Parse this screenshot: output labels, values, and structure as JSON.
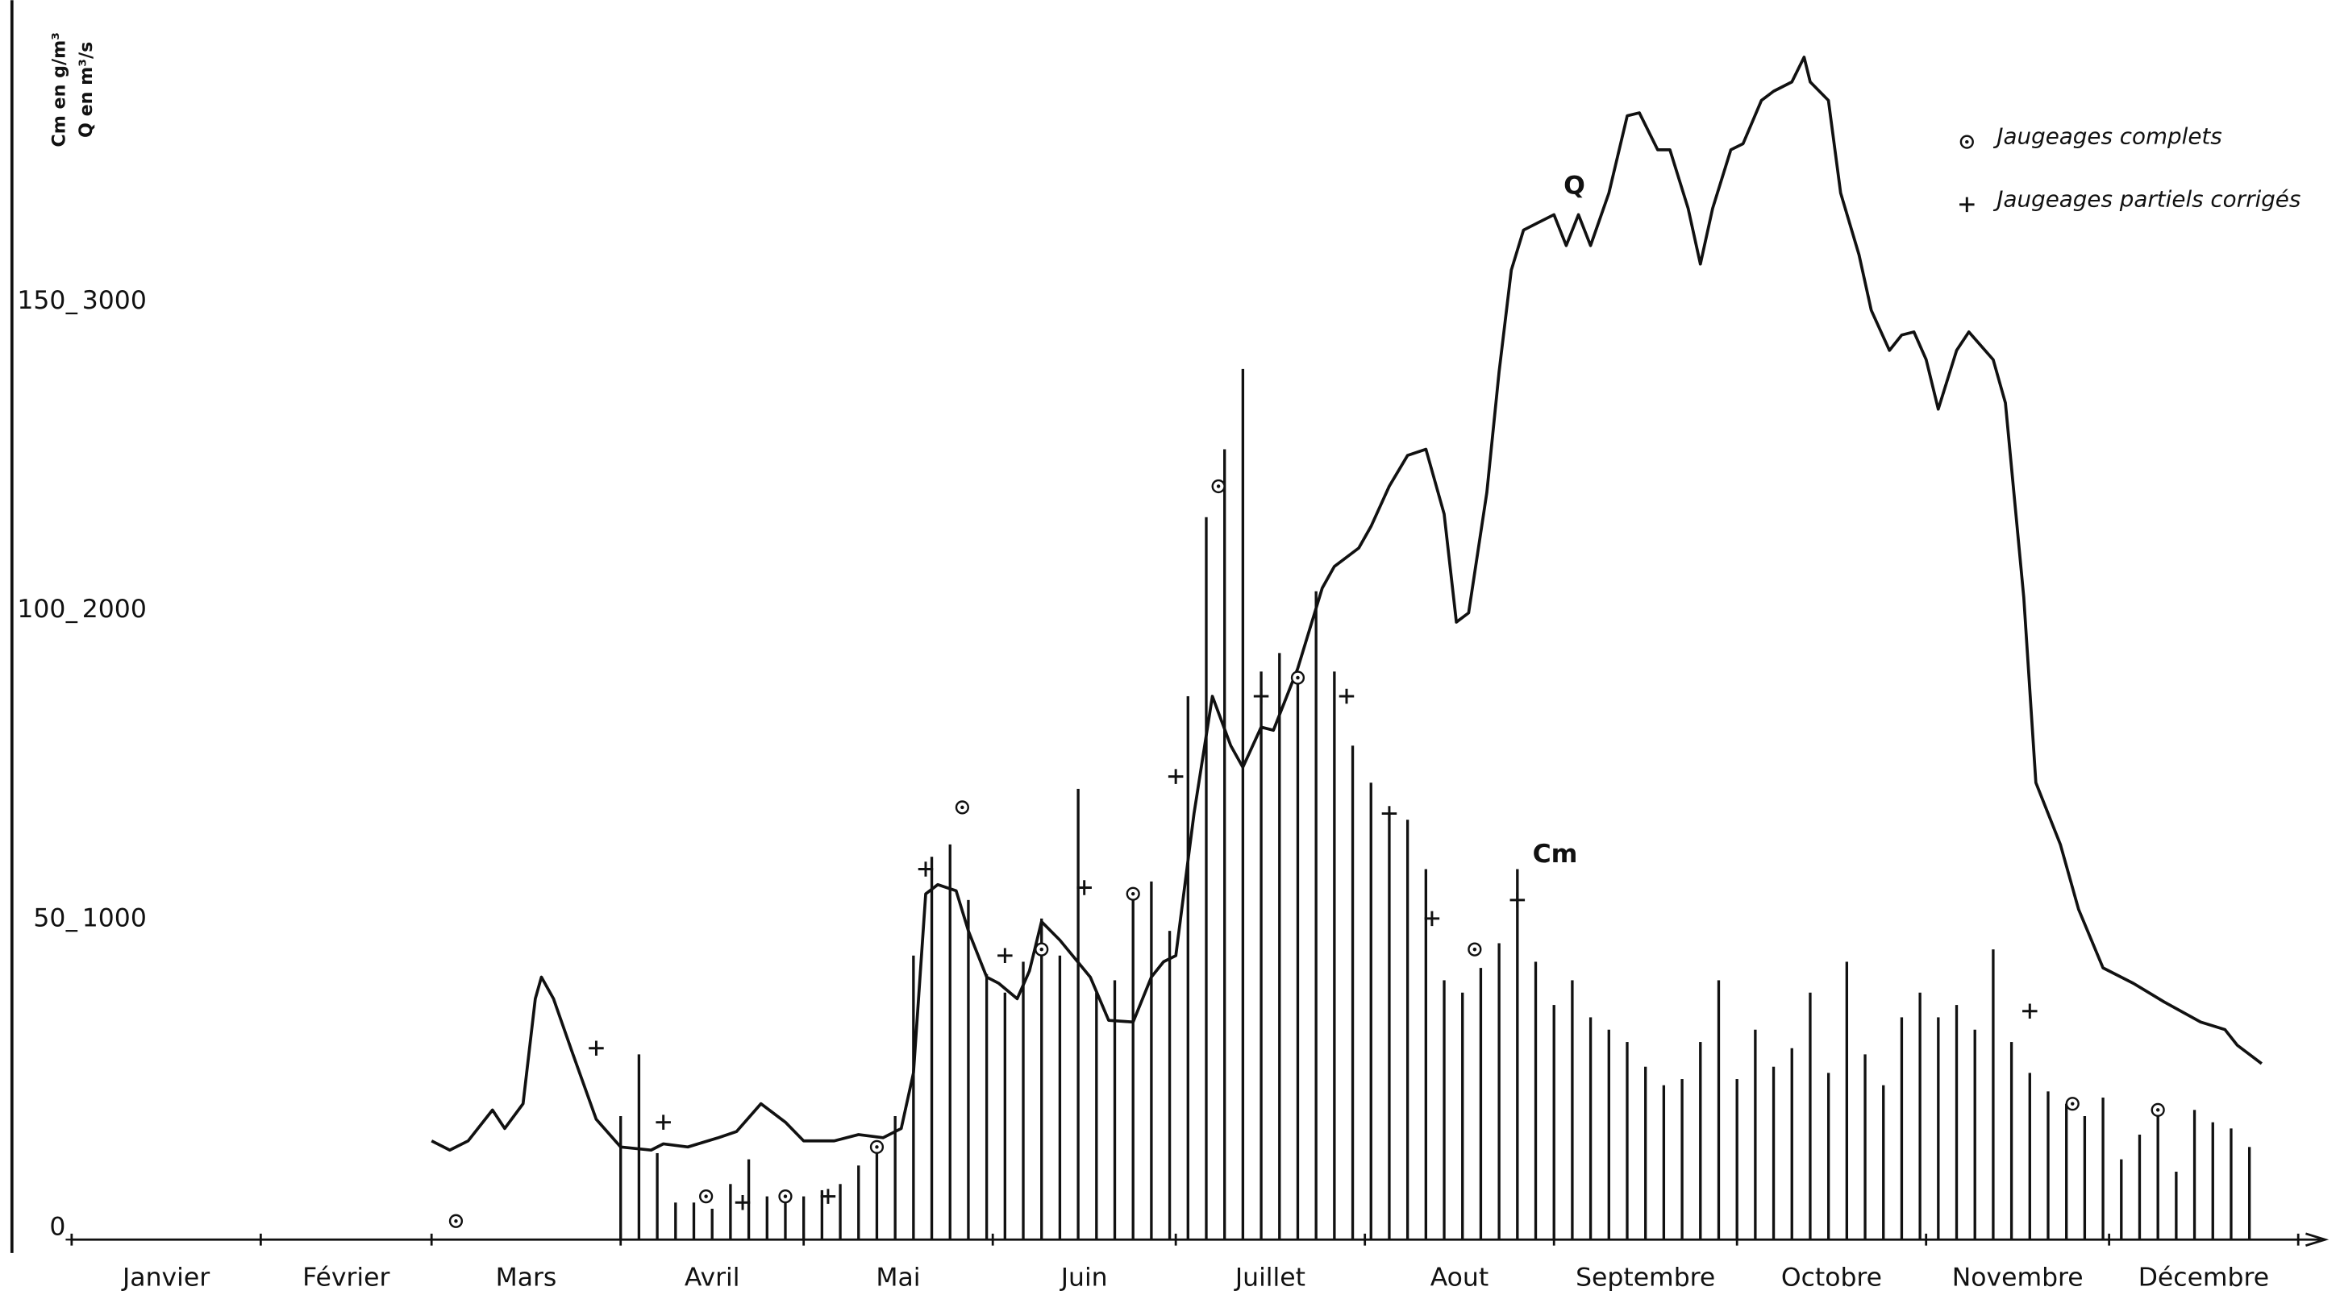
{
  "chart_data": {
    "type": "bar",
    "y_label": "Cm en g/m³",
    "y2_label": "Q en m³/s",
    "categories": [
      "Janvier",
      "Février",
      "Mars",
      "Avril",
      "Mai",
      "Juin",
      "Juillet",
      "Aout",
      "Septembre",
      "Octobre",
      "Novembre",
      "Décembre"
    ],
    "xlim": [
      0,
      365
    ],
    "xticks": [
      0,
      31,
      59,
      90,
      120,
      151,
      181,
      212,
      243,
      273,
      304,
      334,
      365
    ],
    "ylim": [
      0,
      200
    ],
    "yticks": [
      0,
      50,
      100,
      150
    ],
    "y2lim": [
      0,
      4000
    ],
    "y2ticks": [
      1000,
      2000,
      3000
    ],
    "grid": false,
    "legend": "upper right",
    "series": [
      {
        "name": "Cm",
        "type": "bar",
        "color": "#111111",
        "x": [
          90,
          93,
          96,
          99,
          102,
          105,
          108,
          111,
          114,
          117,
          120,
          123,
          126,
          129,
          132,
          135,
          138,
          141,
          144,
          147,
          150,
          153,
          156,
          159,
          162,
          165,
          168,
          171,
          174,
          177,
          180,
          183,
          186,
          189,
          192,
          195,
          198,
          201,
          204,
          207,
          210,
          213,
          216,
          219,
          222,
          225,
          228,
          231,
          234,
          237,
          240,
          243,
          246,
          249,
          252,
          255,
          258,
          261,
          264,
          267,
          270,
          273,
          276,
          279,
          282,
          285,
          288,
          291,
          294,
          297,
          300,
          303,
          306,
          309,
          312,
          315,
          318,
          321,
          324,
          327,
          330,
          333,
          336,
          339,
          342,
          345,
          348,
          351,
          354,
          357
        ],
        "values": [
          20,
          30,
          14,
          6,
          6,
          5,
          9,
          13,
          7,
          6,
          7,
          8,
          9,
          12,
          15,
          20,
          46,
          62,
          64,
          55,
          43,
          40,
          45,
          52,
          46,
          73,
          40,
          42,
          56,
          58,
          50,
          88,
          117,
          128,
          141,
          92,
          95,
          90,
          105,
          92,
          80,
          74,
          69,
          68,
          60,
          42,
          40,
          44,
          48,
          60,
          45,
          38,
          42,
          36,
          34,
          32,
          28,
          25,
          26,
          32,
          42,
          26,
          34,
          28,
          31,
          40,
          27,
          45,
          30,
          25,
          36,
          40,
          36,
          38,
          34,
          47,
          32,
          27,
          24,
          22,
          20,
          23,
          13,
          17,
          20,
          11,
          21,
          19,
          18,
          15
        ]
      },
      {
        "name": "Q",
        "type": "line",
        "axis": "y2",
        "color": "#111111",
        "x": [
          59,
          62,
          65,
          69,
          71,
          74,
          76,
          77,
          79,
          82,
          86,
          90,
          95,
          97,
          101,
          106,
          109,
          113,
          117,
          120,
          125,
          129,
          133,
          136,
          138,
          140,
          142,
          145,
          147,
          150,
          152,
          155,
          157,
          159,
          162,
          167,
          170,
          174,
          177,
          179,
          181,
          184,
          187,
          190,
          192,
          195,
          197,
          201,
          205,
          207,
          211,
          213,
          216,
          219,
          222,
          225,
          227,
          229,
          232,
          234,
          236,
          238,
          240,
          243,
          245,
          247,
          249,
          252,
          255,
          257,
          260,
          262,
          265,
          267,
          269,
          272,
          274,
          277,
          279,
          282,
          284,
          285,
          288,
          290,
          293,
          295,
          298,
          300,
          302,
          304,
          306,
          309,
          311,
          315,
          317,
          320,
          322,
          326,
          329,
          333,
          338,
          343,
          349,
          353,
          355,
          359
        ],
        "values": [
          320,
          290,
          320,
          420,
          360,
          440,
          780,
          850,
          780,
          610,
          390,
          300,
          290,
          310,
          300,
          330,
          350,
          440,
          380,
          320,
          320,
          340,
          330,
          360,
          540,
          1120,
          1150,
          1130,
          1000,
          850,
          830,
          780,
          870,
          1030,
          970,
          850,
          710,
          705,
          850,
          900,
          920,
          1380,
          1760,
          1600,
          1530,
          1660,
          1650,
          1850,
          2110,
          2180,
          2240,
          2310,
          2440,
          2540,
          2560,
          2350,
          2000,
          2030,
          2420,
          2810,
          3140,
          3270,
          3290,
          3320,
          3220,
          3320,
          3220,
          3390,
          3640,
          3650,
          3530,
          3530,
          3340,
          3160,
          3340,
          3530,
          3550,
          3690,
          3720,
          3750,
          3830,
          3750,
          3690,
          3390,
          3190,
          3010,
          2880,
          2930,
          2940,
          2850,
          2690,
          2880,
          2940,
          2850,
          2710,
          2080,
          1480,
          1280,
          1070,
          880,
          830,
          770,
          705,
          680,
          630,
          570
        ]
      },
      {
        "name": "Jaugeages complets",
        "type": "scatter",
        "symbol": "circle",
        "color": "#111111",
        "x": [
          63,
          104,
          117,
          132,
          146,
          159,
          174,
          188,
          201,
          230,
          328,
          342
        ],
        "values": [
          3,
          7,
          7,
          15,
          70,
          47,
          56,
          122,
          91,
          47,
          22,
          21
        ]
      },
      {
        "name": "Jaugeages partiels corrigés",
        "type": "scatter",
        "symbol": "plus",
        "color": "#111111",
        "x": [
          86,
          97,
          110,
          124,
          140,
          153,
          166,
          181,
          195,
          209,
          216,
          223,
          237,
          321
        ],
        "values": [
          31,
          19,
          6,
          7,
          60,
          46,
          57,
          75,
          88,
          88,
          69,
          52,
          55,
          37
        ]
      }
    ]
  }
}
